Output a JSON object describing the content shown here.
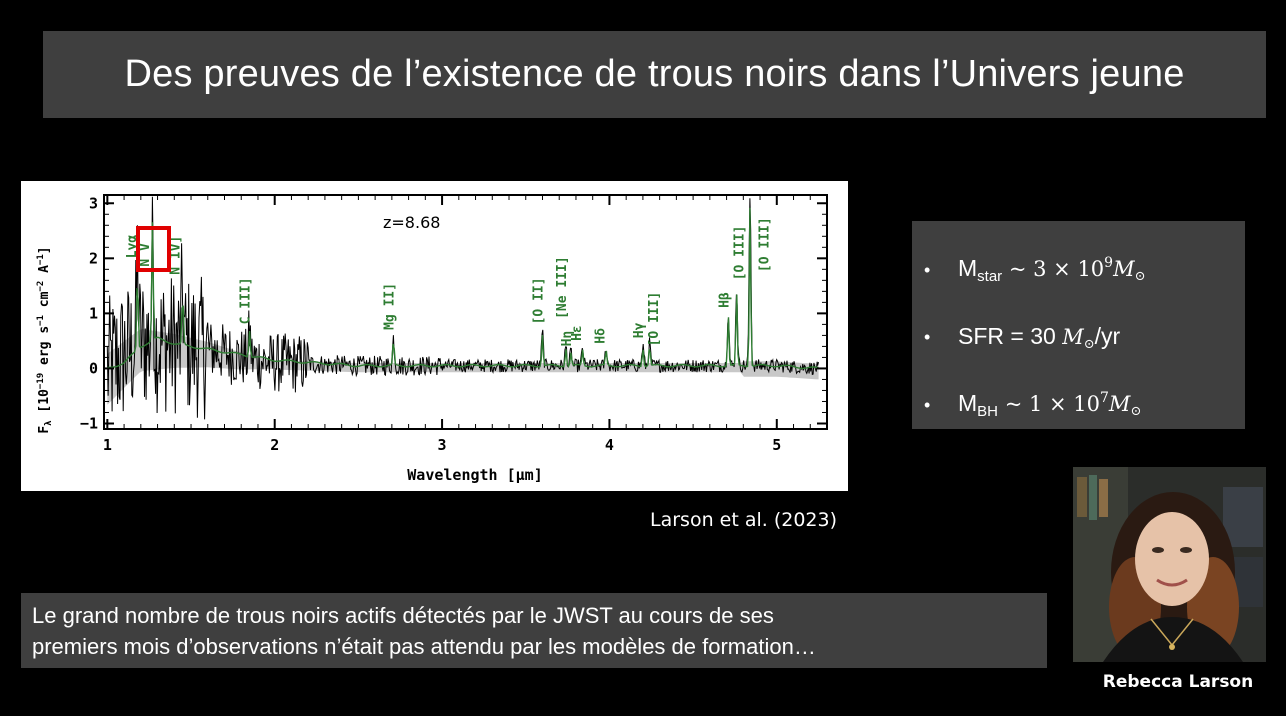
{
  "slide": {
    "title": "Des preuves de l’existence de trous noirs dans l’Univers jeune",
    "credit": "Larson et al. (2023)",
    "caption_line1": "Le grand nombre de trous noirs actifs détectés par le JWST au cours de ses",
    "caption_line2": "premiers mois d’observations n’était pas attendu par les modèles de formation…",
    "person_name": "Rebecca Larson"
  },
  "stats": [
    {
      "bullet": "•",
      "label": "M",
      "label_sub": "star",
      "relation": " ~ ",
      "coef": "3 × 10",
      "exp": "9",
      "unit": "M",
      "unit_sub": "⊙",
      "suffix": ""
    },
    {
      "bullet": "•",
      "label": "SFR",
      "label_sub": "",
      "relation": " = ",
      "coef": "30",
      "exp": "",
      "unit": "M",
      "unit_sub": "⊙",
      "suffix": "/yr"
    },
    {
      "bullet": "•",
      "label": "M",
      "label_sub": "BH",
      "relation": " ~ ",
      "coef": "1 × 10",
      "exp": "7",
      "unit": "M",
      "unit_sub": "⊙",
      "suffix": ""
    }
  ],
  "colors": {
    "background": "#000000",
    "panel": "#3f3f3f",
    "line_label_green": "#2e7d32",
    "highlight_red": "#e00000",
    "spectrum": "#000000",
    "error_band": "#b0b0b0"
  },
  "chart_data": {
    "type": "line",
    "annotation": "z=8.68",
    "xlabel": "Wavelength [μm]",
    "ylabel": "F_λ [10⁻¹⁹ erg s⁻¹ cm⁻² A⁻¹]",
    "ylabel_parts": {
      "main": "F",
      "sub": "λ",
      "bracket_open": "[10",
      "exp1": "−19",
      "erg": "erg s",
      "exp2": "−1",
      "cm": "cm",
      "exp3": "−2",
      "A": "A",
      "exp4": "−1",
      "bracket_close": "]"
    },
    "xlim": [
      0.98,
      5.3
    ],
    "ylim": [
      -1.1,
      3.15
    ],
    "xticks": [
      1,
      2,
      3,
      4,
      5
    ],
    "xtick_labels": [
      "1",
      "2",
      "3",
      "4",
      "5"
    ],
    "yticks": [
      -1,
      0,
      1,
      2,
      3
    ],
    "ytick_labels": [
      "−1",
      "0",
      "1",
      "2",
      "3"
    ],
    "highlight_box_label": "N V",
    "line_labels": [
      {
        "label": "Lyα",
        "x": 1.17,
        "y": 2.0
      },
      {
        "label": "N V",
        "x": 1.25,
        "y": 1.85
      },
      {
        "label": "N IV]",
        "x": 1.43,
        "y": 1.7
      },
      {
        "label": "C III]",
        "x": 1.85,
        "y": 0.8
      },
      {
        "label": "Mg II]",
        "x": 2.71,
        "y": 0.7
      },
      {
        "label": "[O II]",
        "x": 3.6,
        "y": 0.8
      },
      {
        "label": "[Ne III]",
        "x": 3.74,
        "y": 0.9
      },
      {
        "label": "Hη",
        "x": 3.77,
        "y": 0.4
      },
      {
        "label": "Hε",
        "x": 3.83,
        "y": 0.5
      },
      {
        "label": "Hδ",
        "x": 3.97,
        "y": 0.45
      },
      {
        "label": "Hγ",
        "x": 4.2,
        "y": 0.55
      },
      {
        "label": "[O III]",
        "x": 4.29,
        "y": 0.4
      },
      {
        "label": "Hβ",
        "x": 4.71,
        "y": 1.1
      },
      {
        "label": "[O III]",
        "x": 4.8,
        "y": 1.6
      },
      {
        "label": "[O III]",
        "x": 4.95,
        "y": 1.75
      }
    ],
    "emission_lines": [
      {
        "x": 1.18,
        "peak": 1.5
      },
      {
        "x": 1.27,
        "peak": 2.3
      },
      {
        "x": 1.45,
        "peak": 1.0
      },
      {
        "x": 1.85,
        "peak": 0.5
      },
      {
        "x": 2.71,
        "peak": 0.5
      },
      {
        "x": 3.6,
        "peak": 0.6
      },
      {
        "x": 3.74,
        "peak": 0.35
      },
      {
        "x": 3.77,
        "peak": 0.25
      },
      {
        "x": 3.84,
        "peak": 0.3
      },
      {
        "x": 3.98,
        "peak": 0.3
      },
      {
        "x": 4.2,
        "peak": 0.35
      },
      {
        "x": 4.24,
        "peak": 0.4
      },
      {
        "x": 4.71,
        "peak": 1.0
      },
      {
        "x": 4.76,
        "peak": 1.4
      },
      {
        "x": 4.84,
        "peak": 3.1
      }
    ],
    "series": [
      {
        "style": "spectrum (black, noisy)",
        "x": [
          1.0,
          1.2,
          1.4,
          1.6,
          1.8,
          2.0,
          2.5,
          3.0,
          3.5,
          4.0,
          4.5,
          5.0,
          5.25
        ],
        "y": [
          0.0,
          0.5,
          0.45,
          0.35,
          0.2,
          0.1,
          0.05,
          0.05,
          0.05,
          0.05,
          0.05,
          0.05,
          0.0
        ]
      },
      {
        "style": "model fit (green)",
        "x": [
          1.0,
          1.1,
          1.2,
          1.3,
          1.4,
          1.5,
          1.6,
          1.8,
          2.0,
          2.5,
          3.0,
          3.5,
          4.0,
          4.5,
          5.0,
          5.25
        ],
        "y": [
          0.0,
          0.1,
          0.4,
          0.55,
          0.45,
          0.4,
          0.35,
          0.25,
          0.15,
          0.05,
          0.05,
          0.05,
          0.05,
          0.05,
          0.05,
          0.0
        ]
      }
    ]
  }
}
